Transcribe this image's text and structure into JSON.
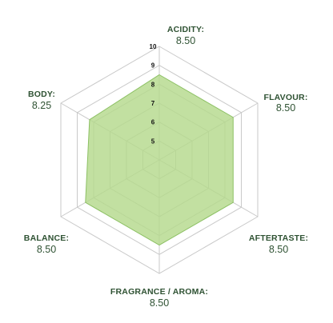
{
  "chart_data": {
    "type": "radar",
    "title": "",
    "axes": [
      "ACIDITY:",
      "FLAVOUR:",
      "AFTERTASTE:",
      "FRAGRANCE / AROMA:",
      "BALANCE:",
      "BODY:"
    ],
    "value_labels": [
      "8.50",
      "8.50",
      "8.50",
      "8.50",
      "8.50",
      "8.25"
    ],
    "values": [
      8.5,
      8.5,
      8.5,
      8.5,
      8.5,
      8.25
    ],
    "range": [
      4,
      10
    ],
    "ticks": [
      "5",
      "6",
      "7",
      "8",
      "9",
      "10"
    ],
    "grid": true,
    "colors": {
      "fill": "#b5d98c",
      "stroke": "#8cc063",
      "grid": "#c9c9c9",
      "label": "#2f5233"
    }
  }
}
